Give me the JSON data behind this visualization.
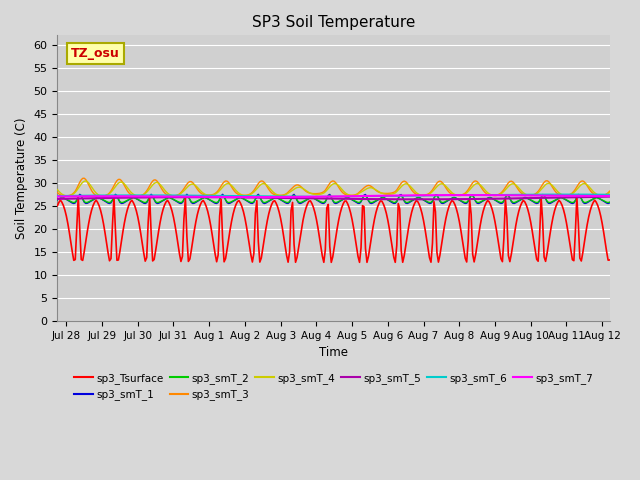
{
  "title": "SP3 Soil Temperature",
  "xlabel": "Time",
  "ylabel": "Soil Temperature (C)",
  "ylim": [
    0,
    62
  ],
  "yticks": [
    0,
    5,
    10,
    15,
    20,
    25,
    30,
    35,
    40,
    45,
    50,
    55,
    60
  ],
  "tz_label": "TZ_osu",
  "fig_facecolor": "#d8d8d8",
  "ax_facecolor": "#d0d0d0",
  "series_colors": {
    "sp3_Tsurface": "#ff0000",
    "sp3_smT_1": "#0000dd",
    "sp3_smT_2": "#00cc00",
    "sp3_smT_3": "#ff8800",
    "sp3_smT_4": "#cccc00",
    "sp3_smT_5": "#aa00aa",
    "sp3_smT_6": "#00cccc",
    "sp3_smT_7": "#ff00ff"
  },
  "series_lw": {
    "sp3_Tsurface": 1.2,
    "sp3_smT_1": 1.0,
    "sp3_smT_2": 1.0,
    "sp3_smT_3": 1.0,
    "sp3_smT_4": 1.0,
    "sp3_smT_5": 1.5,
    "sp3_smT_6": 1.0,
    "sp3_smT_7": 1.5
  }
}
